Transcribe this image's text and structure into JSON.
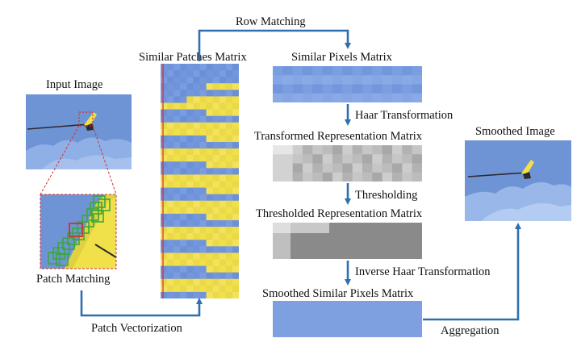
{
  "labels": {
    "row_matching": "Row Matching",
    "similar_patches_matrix": "Similar Patches Matrix",
    "similar_pixels_matrix": "Similar Pixels Matrix",
    "input_image": "Input Image",
    "haar_transformation": "Haar Transformation",
    "transformed_representation_matrix": "Transformed Representation Matrix",
    "smoothed_image": "Smoothed Image",
    "thresholding": "Thresholding",
    "thresholded_representation_matrix": "Thresholded Representation Matrix",
    "inverse_haar_transformation": "Inverse Haar Transformation",
    "patch_matching": "Patch Matching",
    "smoothed_similar_pixels_matrix": "Smoothed Similar Pixels Matrix",
    "patch_vectorization": "Patch Vectorization",
    "aggregation": "Aggregation"
  },
  "colors": {
    "arrow": "#2e6fb0",
    "sky": "#6f94d6",
    "yellow": "#f0e04a",
    "matrix_blue": "#7fa0e0",
    "highlight_red": "#d0302e",
    "patch_green": "#3aa83a"
  }
}
